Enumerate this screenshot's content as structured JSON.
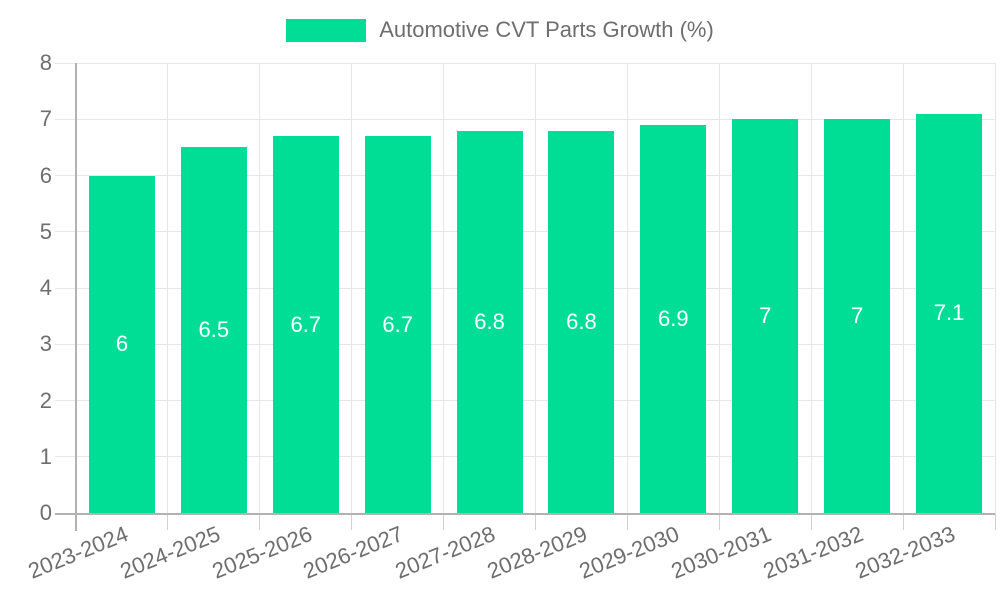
{
  "chart_data": {
    "type": "bar",
    "legend_label": "Automotive CVT Parts Growth (%)",
    "legend_position": "top-center",
    "categories": [
      "2023-2024",
      "2024-2025",
      "2025-2026",
      "2026-2027",
      "2027-2028",
      "2028-2029",
      "2029-2030",
      "2030-2031",
      "2031-2032",
      "2032-2033"
    ],
    "values": [
      6,
      6.5,
      6.7,
      6.7,
      6.8,
      6.8,
      6.9,
      7,
      7,
      7.1
    ],
    "value_labels": [
      "6",
      "6.5",
      "6.7",
      "6.7",
      "6.8",
      "6.8",
      "6.9",
      "7",
      "7",
      "7.1"
    ],
    "y_ticks": [
      0,
      1,
      2,
      3,
      4,
      5,
      6,
      7,
      8
    ],
    "ylim": [
      0,
      8
    ],
    "grid": true,
    "colors": {
      "bar": "#00DE96",
      "grid": "#e6e6e6",
      "tick": "#d2d2d2",
      "axis": "#b2b2b2",
      "tick_text": "#6e6e6e",
      "bar_label": "#ffffff",
      "background": "#ffffff"
    }
  }
}
